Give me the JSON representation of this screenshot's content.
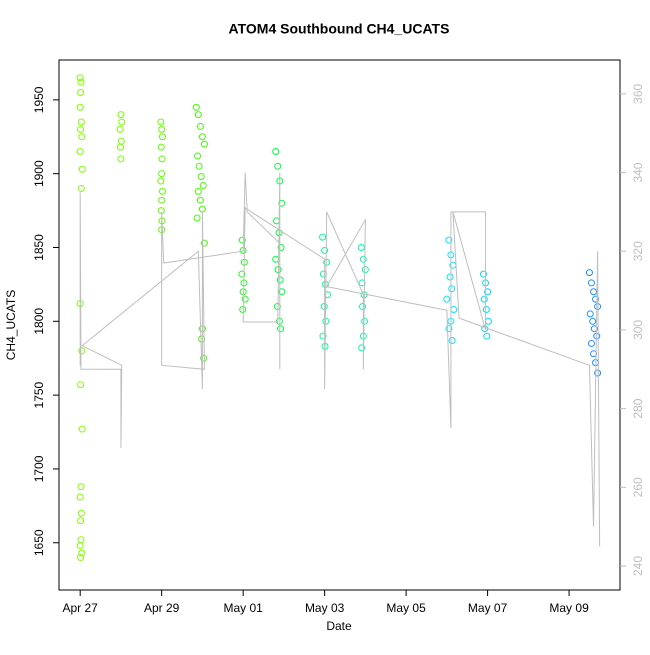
{
  "chart_data": {
    "type": "scatter",
    "title": "ATOM4 Southbound CH4_UCATS",
    "x_label": "Date",
    "y_label": "CH4_UCATS",
    "xlim": [
      -0.52,
      13.25
    ],
    "xticks": [
      {
        "value": 0,
        "label": "Apr 27"
      },
      {
        "value": 2,
        "label": "Apr 29"
      },
      {
        "value": 4,
        "label": "May 01"
      },
      {
        "value": 6,
        "label": "May 03"
      },
      {
        "value": 8,
        "label": "May 05"
      },
      {
        "value": 10,
        "label": "May 07"
      },
      {
        "value": 12,
        "label": "May 09"
      }
    ],
    "ylim": [
      1618,
      1977
    ],
    "yticks": [
      1650,
      1700,
      1750,
      1800,
      1850,
      1900,
      1950
    ],
    "y2lim": [
      233.9,
      368.6
    ],
    "y2ticks": [
      240,
      260,
      280,
      300,
      320,
      340,
      360
    ],
    "y2_color": "#bebebe",
    "series": [
      {
        "x": [
          0.0,
          0.02,
          0.01,
          0.0,
          0.03,
          0.01,
          0.04,
          0.0,
          0.05,
          0.03,
          0.0,
          0.04,
          0.01,
          0.05,
          0.02,
          0.0,
          0.03,
          0.01,
          0.02,
          0.0,
          0.04,
          0.01,
          1.0,
          1.02,
          0.98,
          1.01,
          0.99,
          1.0,
          1.98,
          2.0,
          2.02,
          1.99,
          2.01,
          2.0,
          1.98,
          2.02,
          2.0,
          1.99,
          2.01,
          2.0,
          2.85,
          2.9,
          2.95,
          3.0,
          3.05,
          2.88,
          2.92,
          2.97,
          3.02,
          2.9,
          2.95,
          3.0,
          2.87,
          3.05,
          3.0,
          2.98,
          3.03,
          3.98,
          4.0,
          4.03,
          3.97,
          4.02,
          4.0,
          4.05,
          3.99,
          4.8,
          4.85,
          4.9,
          4.95,
          4.82,
          4.88,
          4.93,
          4.8,
          4.86,
          4.91,
          4.95,
          4.84,
          4.89,
          4.92,
          5.95,
          6.0,
          6.05,
          5.97,
          6.02,
          6.07,
          5.99,
          6.03,
          5.96,
          6.01,
          6.9,
          6.95,
          7.0,
          6.92,
          6.97,
          6.93,
          6.98,
          6.95,
          6.91,
          9.05,
          9.1,
          9.15,
          9.08,
          9.12,
          9.0,
          9.17,
          9.1,
          9.05,
          9.13,
          9.9,
          9.95,
          10.0,
          9.92,
          9.97,
          10.02,
          9.93,
          9.98,
          12.5,
          12.55,
          12.6,
          12.65,
          12.7,
          12.52,
          12.58,
          12.62,
          12.68,
          12.55,
          12.6,
          12.65,
          12.7
        ],
        "values": [
          1965,
          1962,
          1955,
          1945,
          1935,
          1930,
          1925,
          1915,
          1903,
          1890,
          1812,
          1780,
          1757,
          1727,
          1688,
          1681,
          1670,
          1665,
          1652,
          1648,
          1643,
          1640,
          1940,
          1935,
          1930,
          1922,
          1918,
          1910,
          1935,
          1930,
          1925,
          1918,
          1910,
          1900,
          1895,
          1888,
          1882,
          1875,
          1868,
          1862,
          1945,
          1940,
          1932,
          1925,
          1920,
          1912,
          1905,
          1898,
          1892,
          1888,
          1882,
          1876,
          1870,
          1853,
          1795,
          1788,
          1775,
          1855,
          1848,
          1840,
          1832,
          1826,
          1820,
          1815,
          1808,
          1915,
          1905,
          1895,
          1880,
          1868,
          1860,
          1850,
          1842,
          1835,
          1828,
          1820,
          1810,
          1800,
          1795,
          1857,
          1848,
          1840,
          1832,
          1825,
          1818,
          1810,
          1800,
          1790,
          1783,
          1850,
          1842,
          1835,
          1826,
          1818,
          1810,
          1800,
          1790,
          1782,
          1855,
          1845,
          1838,
          1830,
          1822,
          1815,
          1808,
          1800,
          1795,
          1787,
          1832,
          1826,
          1820,
          1815,
          1808,
          1800,
          1795,
          1790,
          1833,
          1826,
          1820,
          1815,
          1810,
          1805,
          1800,
          1795,
          1790,
          1785,
          1778,
          1772,
          1765
        ],
        "colors": [
          "#80ff00",
          "#80ff00",
          "#80ff00",
          "#80ff00",
          "#80ff00",
          "#80ff00",
          "#80ff00",
          "#80ff00",
          "#80ff00",
          "#80ff00",
          "#80ff00",
          "#80ff00",
          "#80ff00",
          "#80ff00",
          "#80ff00",
          "#80ff00",
          "#80ff00",
          "#80ff00",
          "#80ff00",
          "#80ff00",
          "#80ff00",
          "#80ff00",
          "#78ff00",
          "#78ff00",
          "#78ff00",
          "#78ff00",
          "#78ff00",
          "#78ff00",
          "#5eff00",
          "#5eff00",
          "#5eff00",
          "#5eff00",
          "#5eff00",
          "#5eff00",
          "#5eff00",
          "#5eff00",
          "#5eff00",
          "#5eff00",
          "#5eff00",
          "#5eff00",
          "#40ff00",
          "#40ff00",
          "#40ff00",
          "#40ff00",
          "#40ff00",
          "#40ff00",
          "#40ff00",
          "#40ff00",
          "#40ff00",
          "#40ff00",
          "#40ff00",
          "#40ff00",
          "#40ff00",
          "#40ff00",
          "#40ff00",
          "#40ff00",
          "#40ff00",
          "#20ff20",
          "#20ff20",
          "#20ff20",
          "#20ff20",
          "#20ff20",
          "#20ff20",
          "#20ff20",
          "#20ff20",
          "#00ff40",
          "#00ff40",
          "#00ff40",
          "#00ff40",
          "#00ff40",
          "#00ff40",
          "#00ff40",
          "#00ff40",
          "#00ff40",
          "#00ff40",
          "#00ff40",
          "#00ff40",
          "#00ff40",
          "#00ff40",
          "#00ff99",
          "#00ff99",
          "#00ff99",
          "#00ff99",
          "#00ff99",
          "#00ff99",
          "#00ff99",
          "#00ff99",
          "#00ff99",
          "#00ff99",
          "#00ffb0",
          "#00ffb0",
          "#00ffb0",
          "#00ffb0",
          "#00ffb0",
          "#00ffb0",
          "#00ffb0",
          "#00ffb0",
          "#00ffb0",
          "#00e8ff",
          "#00e8ff",
          "#00e8ff",
          "#00e8ff",
          "#00e8ff",
          "#00e8ff",
          "#00e8ff",
          "#00e8ff",
          "#00e8ff",
          "#00e8ff",
          "#00d8ff",
          "#00d8ff",
          "#00d8ff",
          "#00d8ff",
          "#00d8ff",
          "#00d8ff",
          "#00d8ff",
          "#00d8ff",
          "#1e90ff",
          "#1e90ff",
          "#1e90ff",
          "#1e90ff",
          "#1e90ff",
          "#1e90ff",
          "#1e90ff",
          "#1e90ff",
          "#1e90ff",
          "#1e90ff",
          "#1e90ff",
          "#1e90ff",
          "#1e90ff"
        ]
      },
      {
        "type": "line",
        "axis": "y2",
        "color": "#bebebe",
        "x": [
          0,
          0,
          0.02,
          1.0,
          1.0,
          1.02,
          0.05,
          2.9,
          3.0,
          3.0,
          3.05,
          2.0,
          2.0,
          2.05,
          4.0,
          4.05,
          4.1,
          4.9,
          4.9,
          4.9,
          4.85,
          4.0,
          4.05,
          6.0,
          6.0,
          6.05,
          6.95,
          6.95,
          7.0,
          6.05,
          9.0,
          9.1,
          9.1,
          9.95,
          9.95,
          9.15,
          9.3,
          12.5,
          12.6,
          12.7,
          12.75
        ],
        "values": [
          291,
          335,
          290,
          290,
          270,
          291,
          296,
          320,
          285,
          330,
          290,
          291,
          330,
          317,
          320,
          340,
          330,
          322,
          290,
          340,
          302,
          302,
          331,
          318,
          285,
          330,
          309,
          290,
          328,
          311,
          305,
          275,
          330,
          330,
          300,
          330,
          303,
          291,
          250,
          320,
          245
        ]
      }
    ]
  }
}
